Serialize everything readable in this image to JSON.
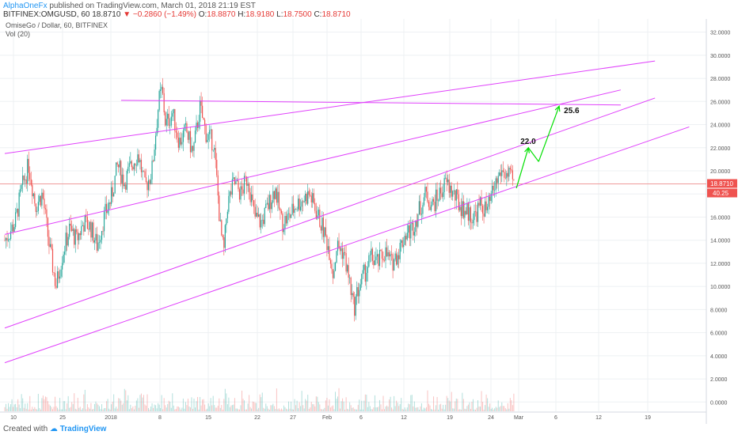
{
  "header": {
    "author": "AlphaOneFx",
    "published": "published on TradingView.com, March 01, 2018 21:19 EST",
    "symbol": "BITFINEX:OMGUSD, 60",
    "last": "18.8710",
    "change_arrow": "▼",
    "change": "−0.2860 (−1.49%)",
    "o_label": "O:",
    "o": "18.8870",
    "h_label": "H:",
    "h": "18.9180",
    "l_label": "L:",
    "l": "18.7500",
    "c_label": "C:",
    "c": "18.8710"
  },
  "legend": {
    "title": "OmiseGo / Dollar, 60, BITFINEX",
    "vol": "Vol (20)"
  },
  "price_badge": "18.8710",
  "vol_badge": "40.25",
  "annotations": {
    "target1": "22.0",
    "target2": "25.6"
  },
  "footer": {
    "created_with": "Created with",
    "brand": "TradingView"
  },
  "colors": {
    "up": "#26a69a",
    "down": "#ef5350",
    "channel": "#e040fb",
    "forecast": "#00e000",
    "grid": "#eef0f3",
    "price_line": "#ef9a9a"
  },
  "chart_data": {
    "type": "candlestick",
    "title": "OmiseGo / Dollar, 60, BITFINEX",
    "x_ticks": [
      "10",
      "25",
      "2018",
      "8",
      "15",
      "22",
      "27",
      "Feb",
      "6",
      "12",
      "19",
      "24",
      "Mar",
      "6",
      "12",
      "19"
    ],
    "y_ticks": [
      "32.0000",
      "30.0000",
      "28.0000",
      "26.0000",
      "24.0000",
      "22.0000",
      "20.0000",
      "18.0000",
      "16.0000",
      "14.0000",
      "12.0000",
      "10.0000",
      "8.0000",
      "6.0000",
      "4.0000",
      "2.0000",
      "0.0000"
    ],
    "ylim": [
      -0.8,
      33
    ],
    "close_path": [
      [
        0,
        14.0
      ],
      [
        3,
        15.5
      ],
      [
        5,
        18.5
      ],
      [
        7,
        20.5
      ],
      [
        9,
        17.0
      ],
      [
        11,
        18.0
      ],
      [
        13,
        13.5
      ],
      [
        15,
        10.0
      ],
      [
        17,
        13.0
      ],
      [
        19,
        15.0
      ],
      [
        21,
        14.0
      ],
      [
        23,
        15.5
      ],
      [
        25,
        15.2
      ],
      [
        27,
        13.5
      ],
      [
        29,
        16.0
      ],
      [
        31,
        17.5
      ],
      [
        33,
        20.5
      ],
      [
        35,
        19.0
      ],
      [
        37,
        20.5
      ],
      [
        39,
        21.5
      ],
      [
        41,
        18.5
      ],
      [
        43,
        20.0
      ],
      [
        45,
        26.0
      ],
      [
        46,
        27.0
      ],
      [
        47,
        24.0
      ],
      [
        49,
        25.0
      ],
      [
        51,
        22.5
      ],
      [
        53,
        23.5
      ],
      [
        55,
        21.5
      ],
      [
        57,
        25.5
      ],
      [
        59,
        23.0
      ],
      [
        61,
        22.5
      ],
      [
        62,
        19.0
      ],
      [
        63,
        15.0
      ],
      [
        64,
        12.8
      ],
      [
        65,
        17.0
      ],
      [
        67,
        19.0
      ],
      [
        69,
        18.0
      ],
      [
        71,
        19.5
      ],
      [
        73,
        16.0
      ],
      [
        75,
        15.5
      ],
      [
        77,
        17.0
      ],
      [
        79,
        18.5
      ],
      [
        81,
        15.5
      ],
      [
        83,
        16.0
      ],
      [
        85,
        17.0
      ],
      [
        87,
        17.5
      ],
      [
        89,
        18.0
      ],
      [
        91,
        16.5
      ],
      [
        93,
        15.0
      ],
      [
        95,
        13.0
      ],
      [
        96,
        11.0
      ],
      [
        97,
        13.5
      ],
      [
        99,
        13.0
      ],
      [
        101,
        10.0
      ],
      [
        102,
        8.0
      ],
      [
        103,
        9.5
      ],
      [
        105,
        11.0
      ],
      [
        107,
        12.5
      ],
      [
        109,
        12.0
      ],
      [
        111,
        13.0
      ],
      [
        113,
        12.0
      ],
      [
        115,
        13.0
      ],
      [
        117,
        14.5
      ],
      [
        119,
        15.0
      ],
      [
        121,
        16.5
      ],
      [
        123,
        18.0
      ],
      [
        125,
        17.0
      ],
      [
        127,
        18.0
      ],
      [
        129,
        19.0
      ],
      [
        131,
        18.0
      ],
      [
        133,
        17.0
      ],
      [
        135,
        16.5
      ],
      [
        137,
        16.0
      ],
      [
        139,
        17.0
      ],
      [
        141,
        16.5
      ],
      [
        143,
        18.5
      ],
      [
        145,
        20.0
      ],
      [
        147,
        19.5
      ],
      [
        149,
        18.9
      ]
    ],
    "forecast": [
      [
        149.5,
        18.5
      ],
      [
        153,
        22.0
      ],
      [
        156,
        20.8
      ],
      [
        162,
        25.6
      ]
    ],
    "trendlines": [
      {
        "from": [
          0,
          21.5
        ],
        "to": [
          190,
          29.5
        ]
      },
      {
        "from": [
          0,
          14.5
        ],
        "to": [
          180,
          27.0
        ]
      },
      {
        "from": [
          0,
          6.4
        ],
        "to": [
          190,
          26.3
        ]
      },
      {
        "from": [
          0,
          3.4
        ],
        "to": [
          200,
          23.8
        ]
      },
      {
        "from": [
          34,
          26.1
        ],
        "to": [
          180,
          25.7
        ]
      }
    ],
    "x_range": [
      0,
      205
    ]
  }
}
